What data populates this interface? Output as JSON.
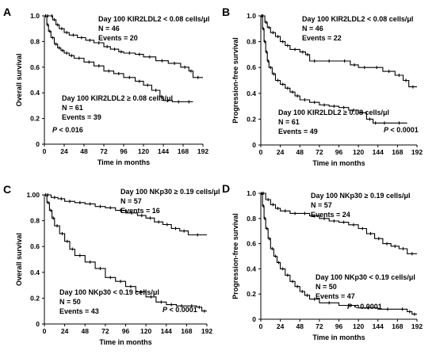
{
  "chart_data": [
    {
      "type": "line",
      "panel_label": "A",
      "xlabel": "Time in months",
      "ylabel": "Overall survival",
      "xlim": [
        0,
        192
      ],
      "ylim": [
        0,
        1.0
      ],
      "x_ticks": [
        0,
        24,
        48,
        72,
        96,
        120,
        144,
        168,
        192
      ],
      "y_ticks": [
        "0",
        "0.2",
        "0.4",
        "0.6",
        "0.8",
        "1.0"
      ],
      "p_value": "P < 0.016",
      "series": [
        {
          "group": "Day 100 KIR2LDL2 < 0.08 cells/μl",
          "n": "N = 46",
          "events": "Events = 20",
          "x": [
            0,
            8,
            10,
            14,
            18,
            24,
            30,
            40,
            50,
            60,
            72,
            80,
            90,
            96,
            110,
            120,
            135,
            150,
            165,
            175,
            180,
            192
          ],
          "y": [
            1.0,
            1.0,
            0.97,
            0.93,
            0.9,
            0.87,
            0.85,
            0.83,
            0.81,
            0.79,
            0.76,
            0.74,
            0.72,
            0.71,
            0.7,
            0.68,
            0.65,
            0.63,
            0.6,
            0.57,
            0.52,
            0.52
          ]
        },
        {
          "group": "Day 100 KIR2LDL2 ≥ 0.08 cells/μl",
          "n": "N = 61",
          "events": "Events = 39",
          "x": [
            0,
            3,
            5,
            8,
            12,
            16,
            20,
            24,
            30,
            36,
            48,
            60,
            72,
            84,
            96,
            110,
            120,
            130,
            140,
            144,
            155,
            170,
            180
          ],
          "y": [
            1.0,
            0.93,
            0.88,
            0.83,
            0.78,
            0.75,
            0.73,
            0.71,
            0.69,
            0.67,
            0.64,
            0.61,
            0.57,
            0.55,
            0.52,
            0.49,
            0.46,
            0.42,
            0.37,
            0.34,
            0.33,
            0.33,
            0.33
          ]
        }
      ]
    },
    {
      "type": "line",
      "panel_label": "B",
      "xlabel": "Time in months",
      "ylabel": "Progression-free survival",
      "xlim": [
        0,
        192
      ],
      "ylim": [
        0,
        1.0
      ],
      "x_ticks": [
        0,
        24,
        48,
        72,
        96,
        120,
        144,
        168,
        192
      ],
      "y_ticks": [
        "0",
        "0.2",
        "0.4",
        "0.6",
        "0.8",
        "1.0"
      ],
      "p_value": "P < 0.0001",
      "series": [
        {
          "group": "Day 100 KIR2LDL2 < 0.08 cells/μl",
          "n": "N = 46",
          "events": "Events = 22",
          "x": [
            0,
            5,
            8,
            12,
            18,
            24,
            30,
            36,
            48,
            55,
            60,
            72,
            96,
            110,
            120,
            135,
            150,
            165,
            175,
            182,
            192
          ],
          "y": [
            1.0,
            0.95,
            0.91,
            0.87,
            0.84,
            0.8,
            0.77,
            0.74,
            0.72,
            0.7,
            0.65,
            0.65,
            0.65,
            0.62,
            0.6,
            0.6,
            0.57,
            0.54,
            0.5,
            0.45,
            0.45
          ]
        },
        {
          "group": "Day 100 KIR2LDL2 ≥ 0.08 cells/μl",
          "n": "N = 61",
          "events": "Events = 49",
          "x": [
            0,
            2,
            4,
            6,
            8,
            10,
            14,
            18,
            24,
            30,
            36,
            42,
            48,
            60,
            72,
            84,
            96,
            108,
            120,
            130,
            138,
            144,
            160,
            180
          ],
          "y": [
            1.0,
            0.9,
            0.8,
            0.72,
            0.65,
            0.6,
            0.55,
            0.5,
            0.47,
            0.44,
            0.41,
            0.38,
            0.35,
            0.33,
            0.31,
            0.3,
            0.29,
            0.27,
            0.25,
            0.2,
            0.17,
            0.17,
            0.17,
            0.17
          ]
        }
      ]
    },
    {
      "type": "line",
      "panel_label": "C",
      "xlabel": "Time in months",
      "ylabel": "Overall survival",
      "xlim": [
        0,
        192
      ],
      "ylim": [
        0,
        1.0
      ],
      "x_ticks": [
        0,
        24,
        48,
        72,
        96,
        120,
        144,
        168,
        192
      ],
      "y_ticks": [
        "0",
        "0.2",
        "0.4",
        "0.6",
        "0.8",
        "1.00"
      ],
      "p_value": "P < 0.0001",
      "series": [
        {
          "group": "Day 100 NKp30 ≥ 0.19 cells/μl",
          "n": "N = 57",
          "events": "Events = 16",
          "x": [
            0,
            8,
            16,
            24,
            36,
            48,
            60,
            72,
            84,
            96,
            110,
            120,
            130,
            140,
            150,
            160,
            170,
            192
          ],
          "y": [
            1.0,
            0.98,
            0.97,
            0.95,
            0.94,
            0.93,
            0.91,
            0.9,
            0.88,
            0.86,
            0.84,
            0.82,
            0.79,
            0.77,
            0.74,
            0.72,
            0.69,
            0.69
          ]
        },
        {
          "group": "Day 100 NKp30 < 0.19 cells/μl",
          "n": "N = 50",
          "events": "Events = 43",
          "x": [
            0,
            3,
            6,
            9,
            12,
            18,
            24,
            30,
            36,
            48,
            60,
            72,
            84,
            96,
            108,
            120,
            132,
            144,
            156,
            168,
            180,
            186,
            192
          ],
          "y": [
            1.0,
            0.94,
            0.88,
            0.82,
            0.76,
            0.7,
            0.64,
            0.58,
            0.53,
            0.48,
            0.43,
            0.36,
            0.33,
            0.29,
            0.25,
            0.21,
            0.17,
            0.15,
            0.14,
            0.14,
            0.13,
            0.1,
            0.1
          ]
        }
      ]
    },
    {
      "type": "line",
      "panel_label": "D",
      "xlabel": "Time in months",
      "ylabel": "Progression-free survival",
      "xlim": [
        0,
        192
      ],
      "ylim": [
        0,
        1.0
      ],
      "x_ticks": [
        0,
        24,
        48,
        72,
        96,
        120,
        144,
        168,
        192
      ],
      "y_ticks": [
        "0",
        "0.2",
        "0.4",
        "0.6",
        "0.8",
        "1.0"
      ],
      "p_value": "P < 0.0001",
      "series": [
        {
          "group": "Day 100 NKp30 ≥ 0.19 cells/μl",
          "n": "N = 57",
          "events": "Events = 24",
          "x": [
            0,
            6,
            12,
            18,
            24,
            36,
            48,
            60,
            72,
            84,
            96,
            108,
            120,
            130,
            140,
            150,
            160,
            170,
            180,
            192
          ],
          "y": [
            1.0,
            0.95,
            0.91,
            0.88,
            0.86,
            0.84,
            0.84,
            0.82,
            0.8,
            0.78,
            0.77,
            0.75,
            0.72,
            0.68,
            0.64,
            0.6,
            0.58,
            0.56,
            0.52,
            0.52
          ]
        },
        {
          "group": "Day 100 NKp30 < 0.19 cells/μl",
          "n": "N = 50",
          "events": "Events = 47",
          "x": [
            0,
            2,
            4,
            6,
            9,
            12,
            16,
            20,
            24,
            30,
            36,
            42,
            48,
            54,
            60,
            72,
            96,
            120,
            144,
            168,
            180,
            186,
            192
          ],
          "y": [
            1.0,
            0.9,
            0.8,
            0.72,
            0.64,
            0.56,
            0.5,
            0.45,
            0.4,
            0.35,
            0.3,
            0.26,
            0.22,
            0.19,
            0.16,
            0.13,
            0.11,
            0.09,
            0.08,
            0.08,
            0.06,
            0.04,
            0.04
          ]
        }
      ]
    }
  ]
}
